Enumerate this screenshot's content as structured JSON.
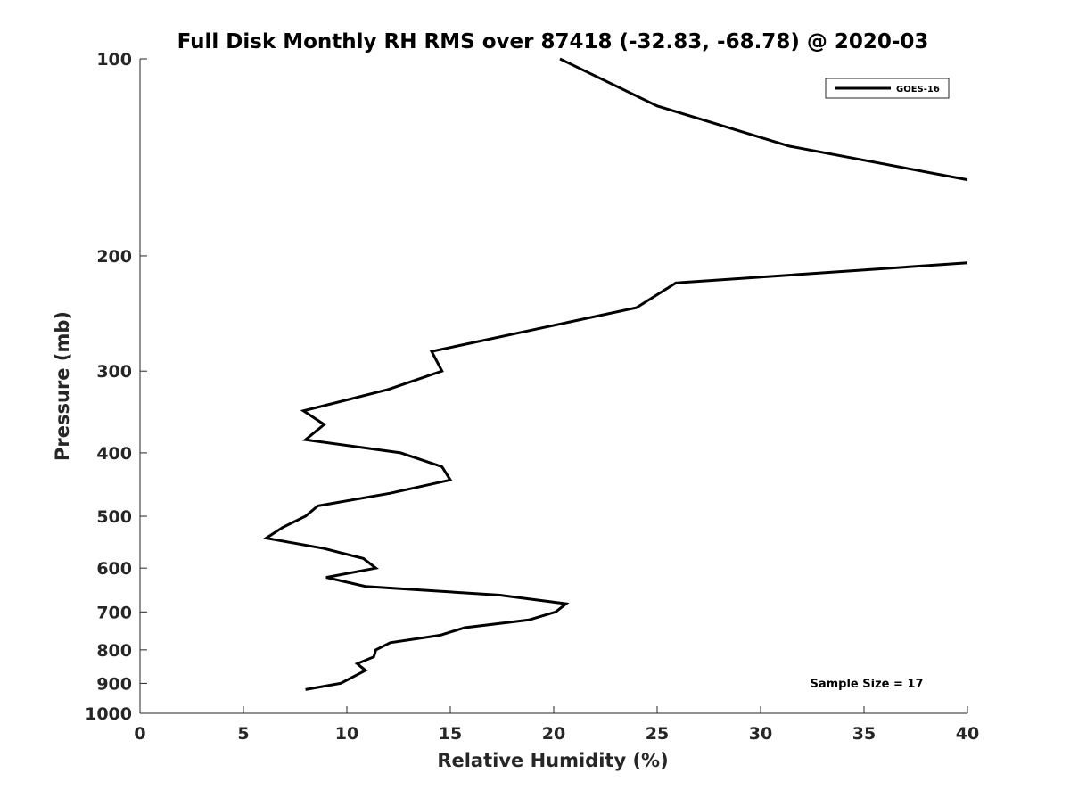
{
  "chart_data": {
    "type": "line",
    "title": "Full Disk Monthly RH RMS over 87418 (-32.83, -68.78) @ 2020-03",
    "xlabel": "Relative Humidity (%)",
    "ylabel": "Pressure (mb)",
    "xlim": [
      0,
      40
    ],
    "ylim": [
      100,
      1000
    ],
    "yscale": "log",
    "y_reversed": true,
    "grid": false,
    "xticks": [
      0,
      5,
      10,
      15,
      20,
      25,
      30,
      35,
      40
    ],
    "xtick_labels": [
      "0",
      "5",
      "10",
      "15",
      "20",
      "25",
      "30",
      "35",
      "40"
    ],
    "yticks": [
      100,
      200,
      300,
      400,
      500,
      600,
      700,
      800,
      900,
      1000
    ],
    "ytick_labels": [
      "100",
      "200",
      "300",
      "400",
      "500",
      "600",
      "700",
      "800",
      "900",
      "1000"
    ],
    "legend": {
      "position": "top-right",
      "entries": [
        "GOES-16"
      ]
    },
    "annotation": "Sample Size = 17",
    "series": [
      {
        "name": "GOES-16",
        "color": "#000000",
        "segments": [
          [
            {
              "x": 20.3,
              "p": 100
            },
            {
              "x": 25.0,
              "p": 118
            },
            {
              "x": 31.4,
              "p": 136
            },
            {
              "x": 40.0,
              "p": 153
            }
          ],
          [
            {
              "x": 40.0,
              "p": 205
            },
            {
              "x": 25.9,
              "p": 220
            },
            {
              "x": 24.0,
              "p": 240
            },
            {
              "x": 14.1,
              "p": 280
            },
            {
              "x": 14.6,
              "p": 300
            },
            {
              "x": 12.0,
              "p": 320
            },
            {
              "x": 7.9,
              "p": 345
            },
            {
              "x": 8.9,
              "p": 362
            },
            {
              "x": 8.0,
              "p": 382
            },
            {
              "x": 12.6,
              "p": 400
            },
            {
              "x": 14.6,
              "p": 420
            },
            {
              "x": 15.0,
              "p": 440
            },
            {
              "x": 12.1,
              "p": 461
            },
            {
              "x": 8.6,
              "p": 482
            },
            {
              "x": 8.0,
              "p": 500
            },
            {
              "x": 6.9,
              "p": 520
            },
            {
              "x": 6.1,
              "p": 540
            },
            {
              "x": 8.9,
              "p": 560
            },
            {
              "x": 10.8,
              "p": 580
            },
            {
              "x": 11.4,
              "p": 600
            },
            {
              "x": 9.0,
              "p": 620
            },
            {
              "x": 10.9,
              "p": 640
            },
            {
              "x": 17.4,
              "p": 660
            },
            {
              "x": 20.6,
              "p": 680
            },
            {
              "x": 20.1,
              "p": 700
            },
            {
              "x": 18.8,
              "p": 720
            },
            {
              "x": 15.7,
              "p": 740
            },
            {
              "x": 14.5,
              "p": 760
            },
            {
              "x": 12.1,
              "p": 780
            },
            {
              "x": 11.4,
              "p": 800
            },
            {
              "x": 11.3,
              "p": 820
            },
            {
              "x": 10.5,
              "p": 840
            },
            {
              "x": 10.9,
              "p": 860
            },
            {
              "x": 9.7,
              "p": 900
            },
            {
              "x": 8.0,
              "p": 920
            }
          ]
        ]
      }
    ]
  }
}
